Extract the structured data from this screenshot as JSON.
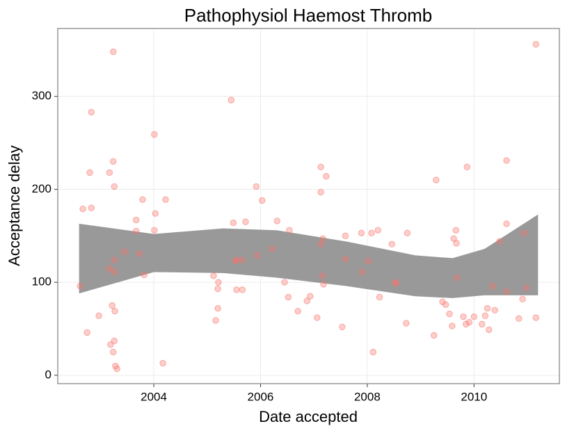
{
  "chart_data": {
    "type": "scatter",
    "title": "Pathophysiol Haemost Thromb",
    "x_label": "Date accepted",
    "y_label": "Acceptance delay",
    "xlim": [
      2002.2,
      2011.6
    ],
    "xticks": [
      2004,
      2006,
      2008,
      2010
    ],
    "ylim": [
      -9,
      373
    ],
    "yticks": [
      0,
      100,
      200,
      300
    ],
    "grid": true,
    "color": "#f8766d",
    "band": {
      "color": "#999999",
      "x": [
        2002.6,
        2004.0,
        2005.3,
        2006.3,
        2007.6,
        2008.9,
        2009.6,
        2010.2,
        2011.2
      ],
      "lower": [
        88,
        111,
        110,
        105,
        96,
        85,
        83,
        86,
        86
      ],
      "upper": [
        163,
        152,
        158,
        156,
        144,
        129,
        126,
        136,
        173
      ]
    },
    "x": [
      2002.62,
      2002.67,
      2002.75,
      2002.8,
      2002.83,
      2002.83,
      2002.97,
      2003.17,
      2003.17,
      2003.19,
      2003.22,
      2003.24,
      2003.24,
      2003.26,
      2003.26,
      2003.26,
      2003.26,
      2003.24,
      2003.27,
      2003.28,
      2003.31,
      2003.45,
      2003.67,
      2003.67,
      2003.73,
      2003.79,
      2003.82,
      2004.01,
      2004.03,
      2004.01,
      2004.17,
      2004.22,
      2005.12,
      2005.16,
      2005.2,
      2005.2,
      2005.21,
      2005.45,
      2005.49,
      2005.53,
      2005.55,
      2005.56,
      2005.66,
      2005.66,
      2005.72,
      2005.92,
      2005.94,
      2006.03,
      2006.22,
      2006.31,
      2006.45,
      2006.52,
      2006.54,
      2006.7,
      2006.87,
      2006.93,
      2007.06,
      2007.13,
      2007.13,
      2007.13,
      2007.16,
      2007.17,
      2007.18,
      2007.23,
      2007.53,
      2007.59,
      2007.59,
      2007.9,
      2007.89,
      2008.02,
      2008.08,
      2008.11,
      2008.2,
      2008.23,
      2008.46,
      2008.52,
      2008.54,
      2008.73,
      2008.75,
      2009.25,
      2009.29,
      2009.41,
      2009.47,
      2009.54,
      2009.59,
      2009.62,
      2009.66,
      2009.67,
      2009.68,
      2009.8,
      2009.87,
      2009.85,
      2009.91,
      2010.0,
      2010.15,
      2010.21,
      2010.25,
      2010.28,
      2010.35,
      2010.39,
      2010.48,
      2010.61,
      2010.61,
      2010.61,
      2010.84,
      2010.91,
      2010.94,
      2010.98,
      2011.16,
      2011.16
    ],
    "values": [
      96,
      179,
      46,
      218,
      283,
      180,
      64,
      218,
      115,
      33,
      75,
      348,
      230,
      203,
      124,
      111,
      37,
      25,
      69,
      10,
      7,
      133,
      167,
      155,
      131,
      189,
      108,
      259,
      174,
      156,
      13,
      189,
      107,
      59,
      72,
      93,
      100,
      296,
      164,
      123,
      92,
      124,
      92,
      124,
      165,
      203,
      129,
      188,
      136,
      166,
      100,
      84,
      156,
      69,
      80,
      85,
      62,
      224,
      197,
      141,
      107,
      147,
      98,
      214,
      52,
      125,
      150,
      111,
      153,
      123,
      153,
      25,
      156,
      84,
      141,
      100,
      99,
      56,
      153,
      43,
      210,
      79,
      76,
      66,
      53,
      147,
      156,
      142,
      105,
      63,
      224,
      55,
      57,
      63,
      55,
      64,
      72,
      49,
      96,
      70,
      144,
      231,
      163,
      90,
      61,
      82,
      153,
      94,
      356,
      62
    ]
  }
}
